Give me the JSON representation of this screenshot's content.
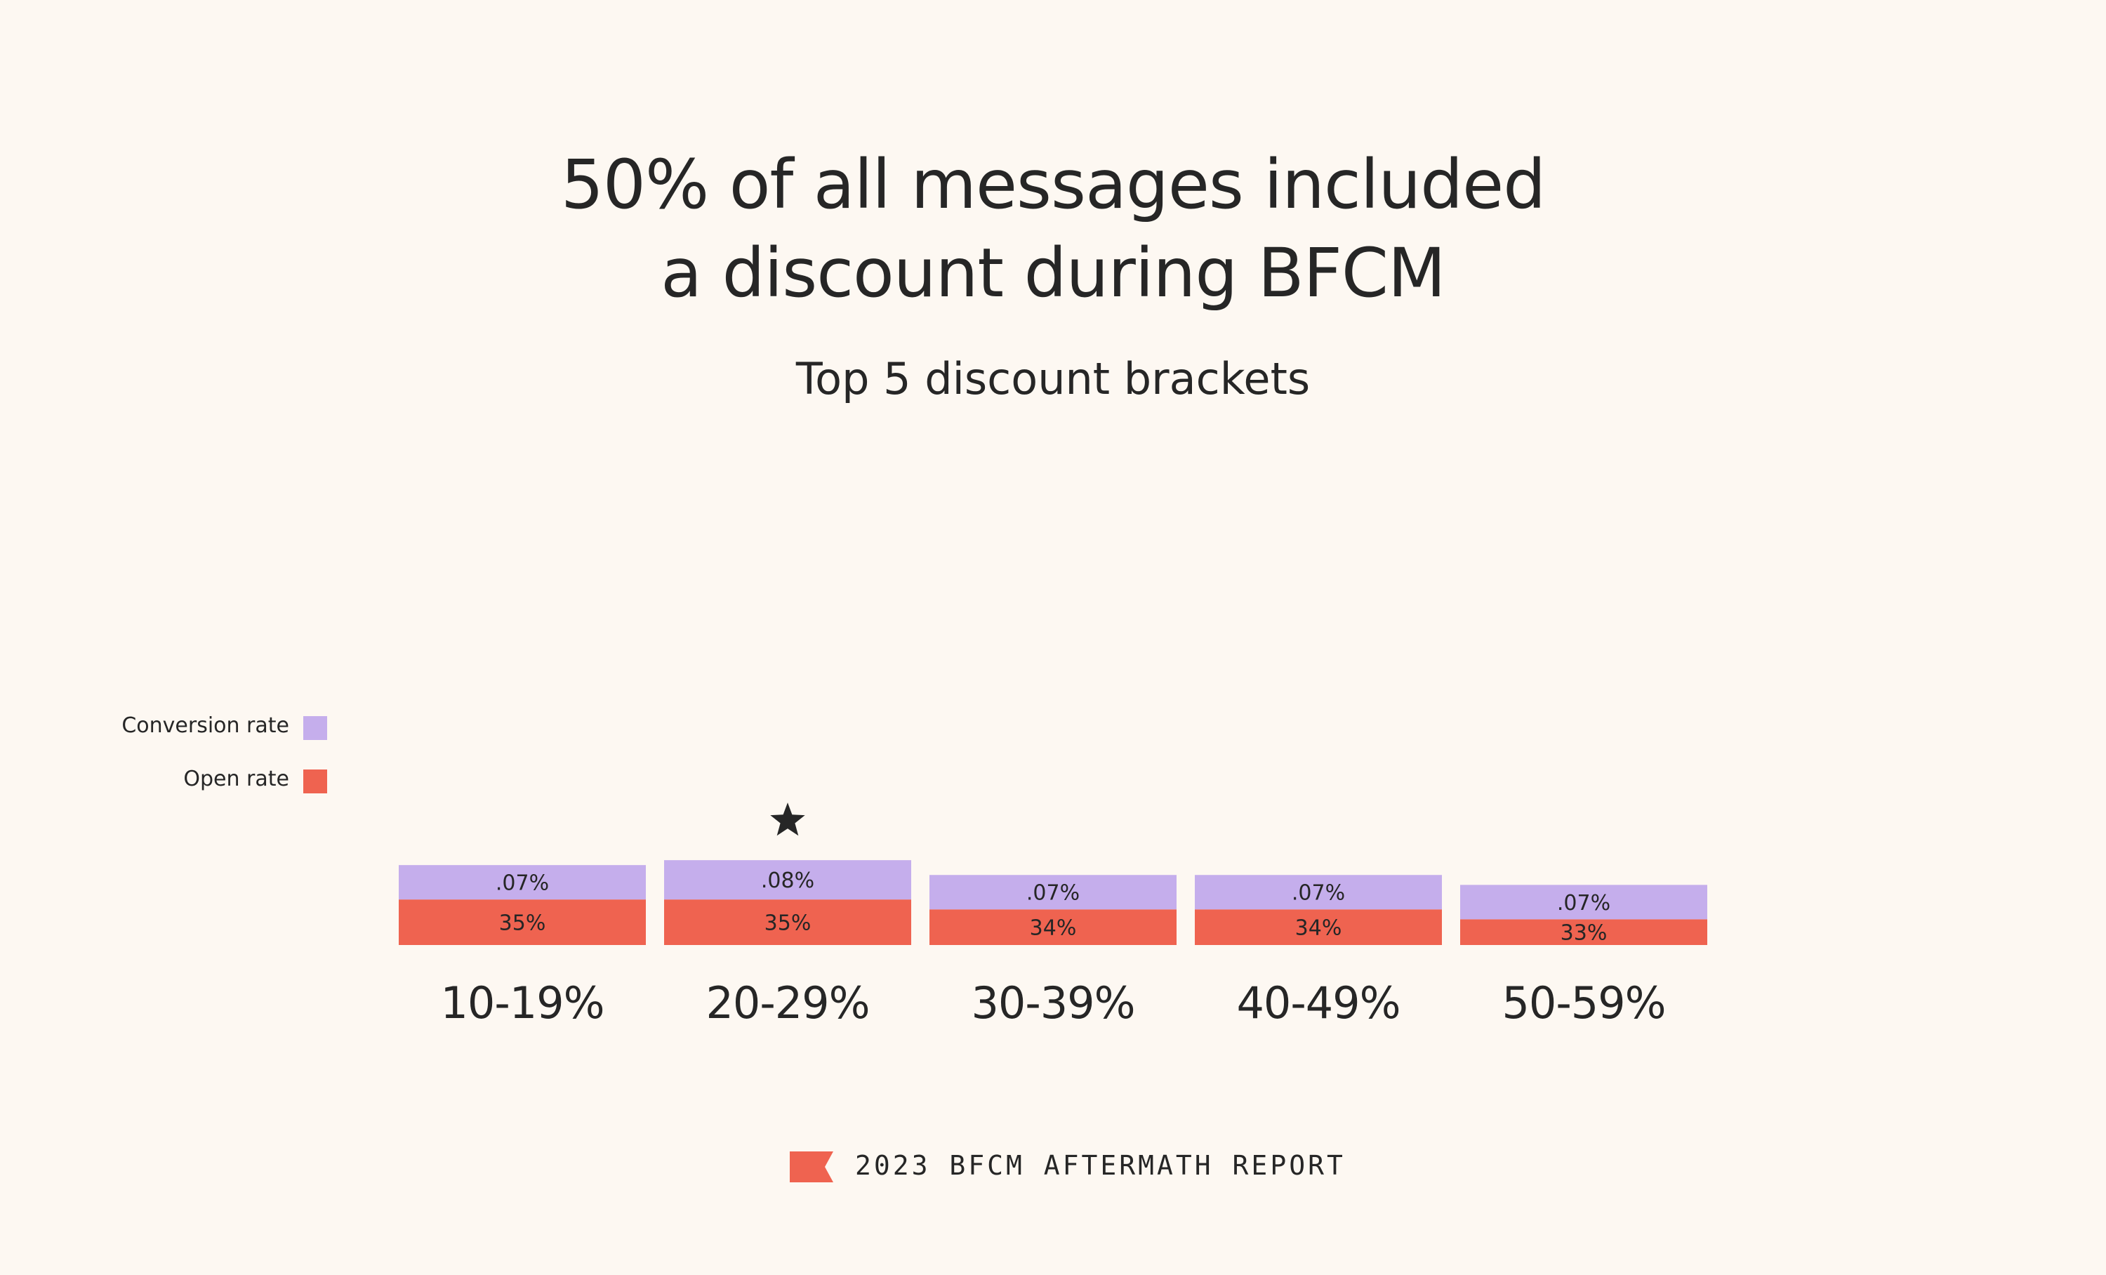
{
  "title_lines": [
    "50% of all messages included",
    "a discount during BFCM"
  ],
  "subtitle": "Top 5 discount brackets",
  "footer": {
    "text": "2023 BFCM AFTERMATH REPORT",
    "icon": "flag-icon"
  },
  "colors": {
    "background": "#fdf8f2",
    "conversion_rate": "#c5aeec",
    "open_rate": "#ef6350",
    "text": "#262626"
  },
  "chart_data": {
    "type": "bar",
    "stacked": true,
    "categories": [
      "10-19%",
      "20-29%",
      "30-39%",
      "40-49%",
      "50-59%"
    ],
    "series": [
      {
        "name": "Open rate",
        "values": [
          35,
          35,
          34,
          34,
          33
        ],
        "labels": [
          "35%",
          "35%",
          "34%",
          "34%",
          "33%"
        ],
        "color": "#ef6350"
      },
      {
        "name": "Conversion rate",
        "values": [
          0.07,
          0.08,
          0.07,
          0.07,
          0.07
        ],
        "labels": [
          ".07%",
          ".08%",
          ".07%",
          ".07%",
          ".07%"
        ],
        "color": "#c5aeec"
      }
    ],
    "highlight": {
      "category": "20-29%",
      "marker": "star-icon"
    },
    "legend": {
      "placement": "left",
      "entries": [
        {
          "label": "Conversion rate",
          "color": "#c5aeec"
        },
        {
          "label": "Open rate",
          "color": "#ef6350"
        }
      ]
    },
    "grid": false,
    "axes_visible": false
  }
}
